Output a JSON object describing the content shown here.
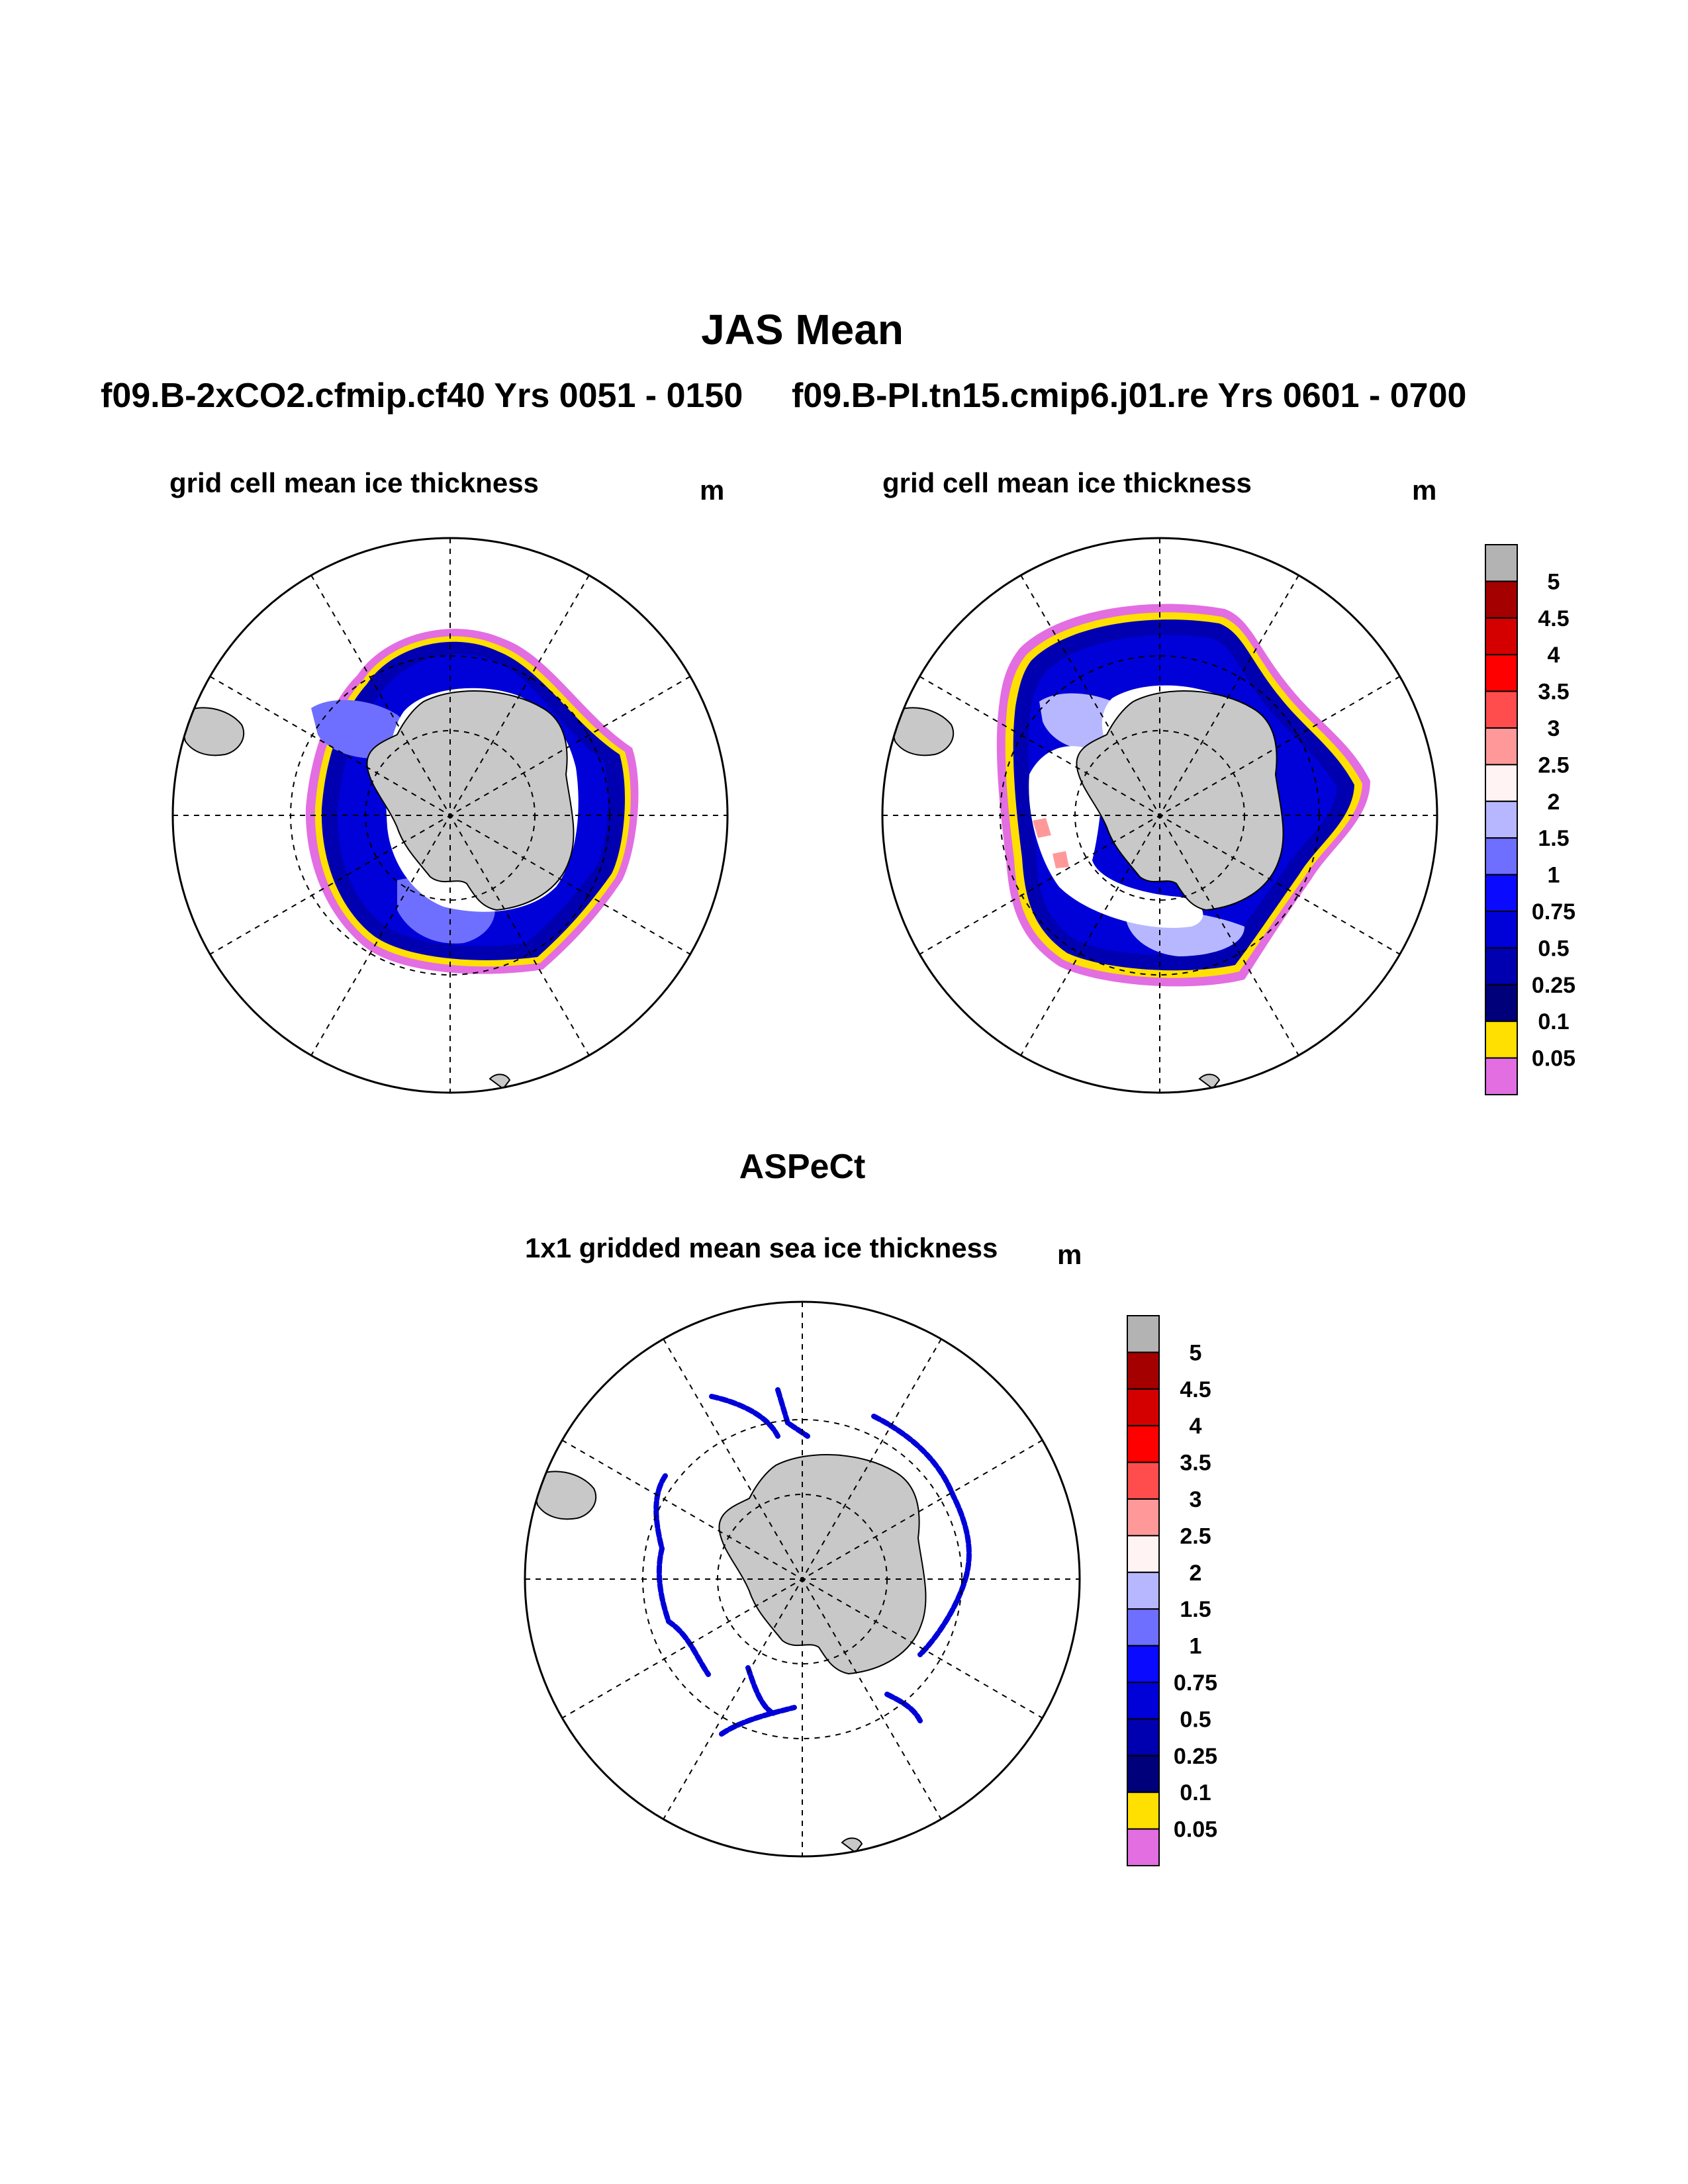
{
  "figure": {
    "title": "JAS Mean",
    "subtitle_left": "f09.B-2xCO2.cfmip.cf40  Yrs 0051 - 0150",
    "subtitle_right": "f09.B-PI.tn15.cmip6.j01.re  Yrs 0601 - 0700",
    "obs_title": "ASPeCt"
  },
  "panels": [
    {
      "id": "model-2xco2",
      "title": "grid cell mean ice thickness",
      "units": "m"
    },
    {
      "id": "model-pi",
      "title": "grid cell mean ice thickness",
      "units": "m"
    },
    {
      "id": "aspect-obs",
      "title": "1x1 gridded mean sea ice thickness",
      "units": "m"
    }
  ],
  "colorbar": {
    "labels": [
      "5",
      "4.5",
      "4",
      "3.5",
      "3",
      "2.5",
      "2",
      "1.5",
      "1",
      "0.75",
      "0.5",
      "0.25",
      "0.1",
      "0.05"
    ],
    "colors": [
      "#b3b3b3",
      "#a50000",
      "#d40000",
      "#ff0000",
      "#ff4d4d",
      "#ff9999",
      "#fff3f3",
      "#b7b7ff",
      "#6f6fff",
      "#0a0aff",
      "#0000d9",
      "#0000b0",
      "#00007a",
      "#ffe000",
      "#e26ee2"
    ]
  },
  "map_colors": {
    "land": "#c8c8c8",
    "ice_thin": "#0000b0",
    "ice_mid": "#0000d9",
    "ice_bright": "#0a0aff",
    "ice_pale": "#6f6fff",
    "ice_lilac": "#b7b7ff",
    "edge_yellow": "#ffe000",
    "edge_pink": "#e26ee2",
    "white_ice": "#ffffff"
  }
}
